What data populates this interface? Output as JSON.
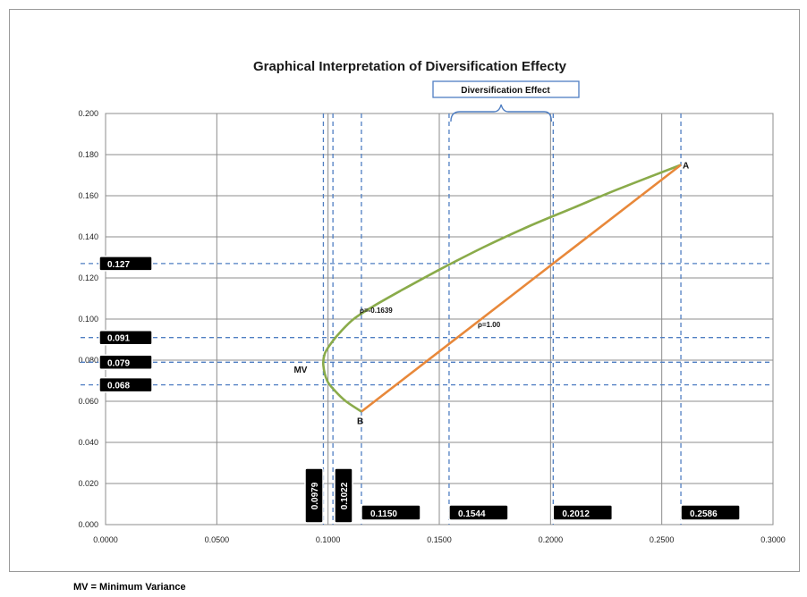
{
  "chart_data": {
    "type": "line",
    "title": "Graphical Interpretation of Diversification Effecty",
    "xlim": [
      0,
      0.3
    ],
    "ylim": [
      0,
      0.2
    ],
    "x_ticks": [
      "0.0000",
      "0.0500",
      "0.1000",
      "0.1500",
      "0.2000",
      "0.2500",
      "0.3000"
    ],
    "y_ticks": [
      "0.000",
      "0.020",
      "0.040",
      "0.060",
      "0.080",
      "0.100",
      "0.120",
      "0.140",
      "0.160",
      "0.180",
      "0.200"
    ],
    "grid": true,
    "series": [
      {
        "name": "ρ=-0.1639",
        "color": "#8aab4a",
        "points": [
          [
            0.115,
            0.055
          ],
          [
            0.108,
            0.06
          ],
          [
            0.1032,
            0.065
          ],
          [
            0.0996,
            0.07
          ],
          [
            0.0979,
            0.0775
          ],
          [
            0.0985,
            0.083
          ],
          [
            0.1012,
            0.088
          ],
          [
            0.1058,
            0.094
          ],
          [
            0.1115,
            0.1
          ],
          [
            0.12,
            0.106
          ],
          [
            0.133,
            0.114
          ],
          [
            0.15,
            0.124
          ],
          [
            0.17,
            0.135
          ],
          [
            0.19,
            0.145
          ],
          [
            0.21,
            0.154
          ],
          [
            0.23,
            0.163
          ],
          [
            0.2586,
            0.175
          ]
        ]
      },
      {
        "name": "ρ=1.00",
        "color": "#e8883a",
        "points": [
          [
            0.115,
            0.055
          ],
          [
            0.2586,
            0.175
          ]
        ]
      }
    ],
    "points": [
      {
        "label": "A",
        "x": 0.2586,
        "y": 0.175
      },
      {
        "label": "B",
        "x": 0.115,
        "y": 0.055
      },
      {
        "label": "MV",
        "x": 0.0979,
        "y": 0.0775
      }
    ],
    "ref_lines_x": [
      0.0979,
      0.1022,
      0.115,
      0.1544,
      0.2012,
      0.2586
    ],
    "ref_lines_y": [
      0.127,
      0.091,
      0.079,
      0.068
    ],
    "x_value_labels": [
      "0.0979",
      "0.1022",
      "0.1150",
      "0.1544",
      "0.2012",
      "0.2586"
    ],
    "y_value_labels": [
      "0.127",
      "0.091",
      "0.079",
      "0.068"
    ],
    "annotation": {
      "text": "Diversification Effect",
      "x_from": 0.1544,
      "x_to": 0.2012
    }
  },
  "footnote": "MV = Minimum Variance"
}
